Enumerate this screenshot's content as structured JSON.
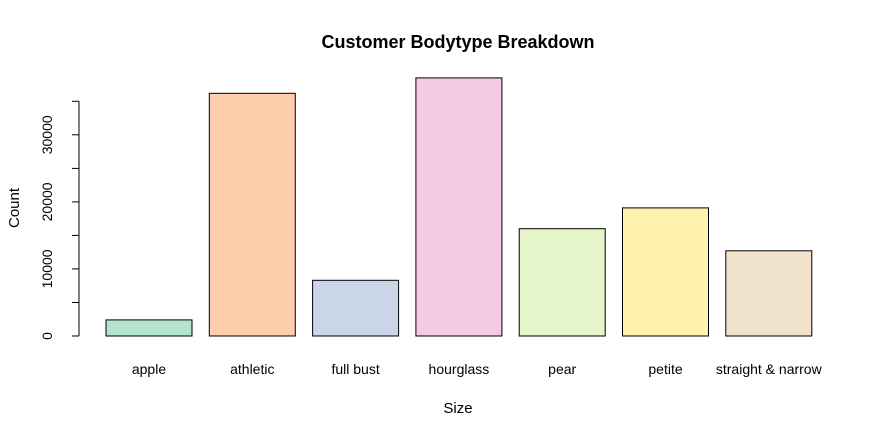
{
  "chart_data": {
    "type": "bar",
    "title": "Customer Bodytype Breakdown",
    "xlabel": "Size",
    "ylabel": "Count",
    "categories": [
      "apple",
      "athletic",
      "full bust",
      "hourglass",
      "pear",
      "petite",
      "straight & narrow"
    ],
    "values": [
      2400,
      36200,
      8300,
      38500,
      16000,
      19100,
      12700
    ],
    "colors": [
      "#B3E2CD",
      "#FDCDAC",
      "#CBD5E8",
      "#F4CAE4",
      "#E6F5C9",
      "#FFF2AE",
      "#F1E2CC"
    ],
    "yticks": [
      0,
      10000,
      20000,
      30000
    ],
    "ylim": [
      0,
      35000
    ],
    "grid": false,
    "legend": "none"
  }
}
